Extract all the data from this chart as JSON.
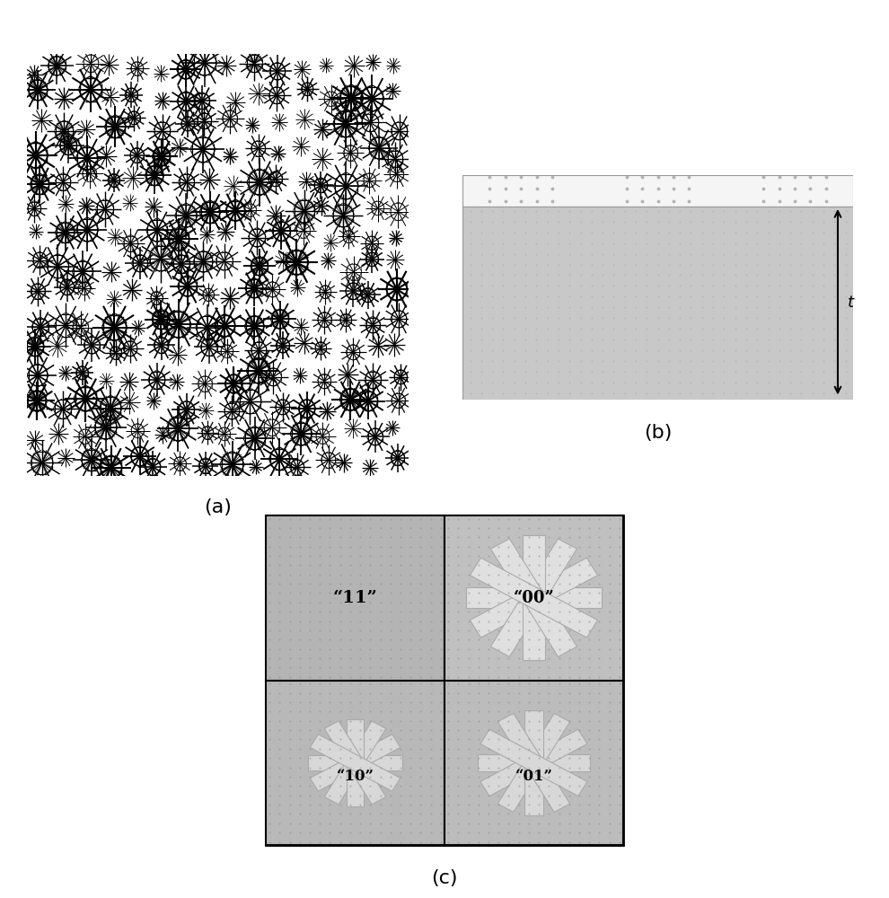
{
  "fig_width": 9.9,
  "fig_height": 10.0,
  "background": "#ffffff",
  "panel_a_label": "(a)",
  "panel_b_label": "(b)",
  "panel_c_label": "(c)",
  "panel_a_bg": "#d8d8d8",
  "label_11": "“11”",
  "label_00": "“00”",
  "label_10": "“10”",
  "label_01": "“01”",
  "t_label": "t",
  "cell_color_11": "#b4b4b4",
  "cell_color_00": "#c0c0c0",
  "cell_color_10": "#b8b8b8",
  "cell_color_01": "#bcbcbc",
  "snowflake_color_00": "#e0e0e0",
  "snowflake_color_10": "#d8d8d8",
  "snowflake_color_01": "#d8d8d8",
  "top_stripe_color": "#eeeeee",
  "main_slab_color": "#cccccc"
}
